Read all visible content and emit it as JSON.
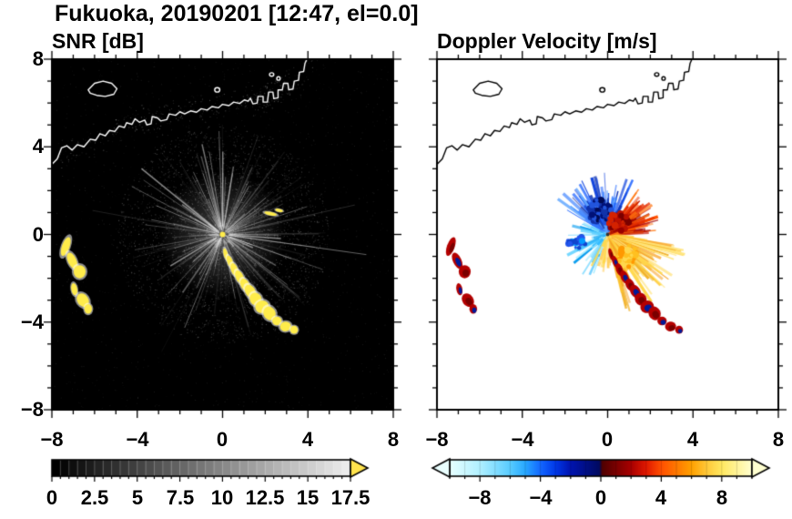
{
  "header": {
    "title": "Fukuoka, 20190201 [12:47, el=0.0]"
  },
  "panels": {
    "snr": {
      "title": "SNR [dB]"
    },
    "doppler": {
      "title": "Doppler Velocity [m/s]"
    }
  },
  "axes": {
    "xticks": [
      "−8",
      "−4",
      "0",
      "4",
      "8"
    ],
    "yticks": [
      "8",
      "4",
      "0",
      "−4",
      "−8"
    ]
  },
  "colorbars": {
    "snr": {
      "tick_labels": [
        "0",
        "2.5",
        "5",
        "7.5",
        "10",
        "12.5",
        "15",
        "17.5"
      ]
    },
    "doppler": {
      "tick_labels": [
        "−8",
        "−4",
        "0",
        "4",
        "8"
      ]
    }
  },
  "map": {
    "coastline": {
      "mainland": [
        [
          -8,
          3.2
        ],
        [
          -7.75,
          3.45
        ],
        [
          -7.55,
          3.95
        ],
        [
          -7.3,
          4.05
        ],
        [
          -7.05,
          3.85
        ],
        [
          -6.8,
          4.1
        ],
        [
          -6.5,
          4.0
        ],
        [
          -6.2,
          4.35
        ],
        [
          -5.95,
          4.3
        ],
        [
          -5.75,
          4.6
        ],
        [
          -5.5,
          4.5
        ],
        [
          -5.3,
          4.75
        ],
        [
          -5.05,
          4.7
        ],
        [
          -4.85,
          4.95
        ],
        [
          -4.6,
          4.88
        ],
        [
          -4.5,
          5.1
        ],
        [
          -4.25,
          5.02
        ],
        [
          -4.1,
          5.28
        ],
        [
          -3.9,
          5.12
        ],
        [
          -3.65,
          5.22
        ],
        [
          -3.55,
          5.0
        ],
        [
          -3.35,
          5.05
        ],
        [
          -3.3,
          5.38
        ],
        [
          -3.05,
          5.32
        ],
        [
          -2.9,
          5.18
        ],
        [
          -2.62,
          5.24
        ],
        [
          -2.5,
          5.5
        ],
        [
          -2.2,
          5.44
        ],
        [
          -2.0,
          5.6
        ],
        [
          -1.78,
          5.5
        ],
        [
          -1.5,
          5.64
        ],
        [
          -1.22,
          5.58
        ],
        [
          -1.0,
          5.74
        ],
        [
          -0.72,
          5.68
        ],
        [
          -0.5,
          5.84
        ],
        [
          -0.2,
          5.78
        ],
        [
          0.0,
          5.94
        ],
        [
          0.3,
          5.88
        ],
        [
          0.52,
          6.04
        ],
        [
          0.8,
          5.98
        ],
        [
          1.02,
          6.14
        ],
        [
          1.2,
          6.08
        ],
        [
          1.3,
          6.22
        ],
        [
          1.42,
          5.96
        ],
        [
          1.62,
          6.0
        ],
        [
          1.66,
          6.3
        ],
        [
          1.9,
          6.3
        ],
        [
          1.9,
          6.04
        ],
        [
          2.1,
          6.04
        ],
        [
          2.16,
          6.5
        ],
        [
          2.36,
          6.5
        ],
        [
          2.4,
          6.2
        ],
        [
          2.6,
          6.24
        ],
        [
          2.6,
          6.6
        ],
        [
          2.8,
          6.6
        ],
        [
          2.86,
          6.9
        ],
        [
          3.06,
          6.9
        ],
        [
          3.1,
          6.6
        ],
        [
          3.3,
          6.64
        ],
        [
          3.36,
          7.0
        ],
        [
          3.56,
          7.04
        ],
        [
          3.6,
          7.4
        ],
        [
          3.8,
          7.44
        ],
        [
          3.86,
          7.8
        ],
        [
          3.95,
          8.0
        ]
      ],
      "island": [
        [
          -6.3,
          6.6
        ],
        [
          -6.0,
          6.9
        ],
        [
          -5.6,
          7.0
        ],
        [
          -5.2,
          6.9
        ],
        [
          -4.95,
          6.65
        ],
        [
          -5.1,
          6.4
        ],
        [
          -5.5,
          6.3
        ],
        [
          -5.9,
          6.35
        ],
        [
          -6.2,
          6.45
        ]
      ],
      "islets": [
        [
          -0.25,
          6.6,
          0.12,
          0.1
        ],
        [
          2.3,
          7.3,
          0.1,
          0.08
        ],
        [
          2.62,
          7.12,
          0.08,
          0.08
        ]
      ]
    },
    "echo_blobs": {
      "west_cluster": [
        [
          -7.35,
          -0.55,
          0.18,
          0.45,
          -20
        ],
        [
          -7.05,
          -1.2,
          0.2,
          0.4,
          25
        ],
        [
          -6.7,
          -1.7,
          0.28,
          0.3,
          0
        ],
        [
          -6.95,
          -2.5,
          0.14,
          0.28,
          10
        ],
        [
          -6.55,
          -3.0,
          0.26,
          0.33,
          35
        ],
        [
          -6.3,
          -3.4,
          0.18,
          0.22,
          0
        ]
      ],
      "southeast_chain": [
        [
          0.15,
          -0.9,
          0.1,
          0.28,
          15
        ],
        [
          0.35,
          -1.25,
          0.13,
          0.3,
          20
        ],
        [
          0.55,
          -1.6,
          0.16,
          0.3,
          20
        ],
        [
          0.8,
          -1.95,
          0.18,
          0.33,
          25
        ],
        [
          1.05,
          -2.3,
          0.2,
          0.3,
          25
        ],
        [
          1.3,
          -2.6,
          0.23,
          0.33,
          30
        ],
        [
          1.55,
          -2.95,
          0.27,
          0.3,
          30
        ],
        [
          1.85,
          -3.3,
          0.32,
          0.28,
          20
        ],
        [
          2.2,
          -3.6,
          0.28,
          0.32,
          25
        ],
        [
          2.55,
          -3.95,
          0.22,
          0.2,
          0
        ],
        [
          2.95,
          -4.2,
          0.26,
          0.22,
          10
        ],
        [
          3.35,
          -4.35,
          0.18,
          0.18,
          0
        ]
      ],
      "east_dashes": [
        [
          2.25,
          0.95,
          0.3,
          0.08,
          -12
        ],
        [
          2.65,
          1.1,
          0.18,
          0.07,
          -12
        ]
      ]
    }
  },
  "chart_data": [
    {
      "type": "heatmap",
      "title": "SNR [dB]",
      "xlabel": "",
      "ylabel": "",
      "xlim": [
        -8,
        8
      ],
      "ylim": [
        -8,
        8
      ],
      "xticks": [
        -8,
        -4,
        0,
        4,
        8
      ],
      "yticks": [
        -8,
        -4,
        0,
        4,
        8
      ],
      "origin": [
        0,
        0
      ],
      "background": "#000000",
      "colorbar": {
        "range": [
          0,
          17.5
        ],
        "ticks": [
          0,
          2.5,
          5,
          7.5,
          10,
          12.5,
          15,
          17.5
        ],
        "colormap": "grayscale black to white",
        "over_color": "#ffe34d"
      },
      "features": [
        "Radial gray clutter streaks centered at radar origin (0,0), lengths about 1-6 km, denser toward NE and E",
        "Saturated yellow echoes (>17.5 dB): western cluster at x=-7.4..-6.3, y=-0.5..-3.5",
        "Saturated yellow echo chain from (0.15,-0.9) down-right to (3.35,-4.35)",
        "Two short yellow dashes near (2.3,1.0)",
        "Coastline and harbor outline drawn in white over black sea/land"
      ]
    },
    {
      "type": "heatmap",
      "title": "Doppler Velocity [m/s]",
      "xlabel": "",
      "ylabel": "",
      "xlim": [
        -8,
        8
      ],
      "ylim": [
        -8,
        8
      ],
      "xticks": [
        -8,
        -4,
        0,
        4,
        8
      ],
      "yticks": [
        -8,
        -4,
        0,
        4,
        8
      ],
      "origin": [
        0,
        0
      ],
      "background": "#ffffff",
      "colorbar": {
        "range": [
          -10,
          10
        ],
        "ticks": [
          -8,
          -4,
          0,
          4,
          8
        ],
        "colormap": "cyan-blue-darkblue / darkred-red-orange-yellow diverging",
        "stops": [
          [
            -10,
            "#e8ffff"
          ],
          [
            -8,
            "#b0f0ff"
          ],
          [
            -6,
            "#58ccff"
          ],
          [
            -5,
            "#28a8ff"
          ],
          [
            -4,
            "#1468ff"
          ],
          [
            -3,
            "#0038e8"
          ],
          [
            -2,
            "#0014b0"
          ],
          [
            -0.1,
            "#000a60"
          ],
          [
            0.1,
            "#500000"
          ],
          [
            2,
            "#a80000"
          ],
          [
            3,
            "#e01800"
          ],
          [
            4,
            "#ff5000"
          ],
          [
            5,
            "#ff7800"
          ],
          [
            6,
            "#ffa000"
          ],
          [
            7,
            "#ffc838"
          ],
          [
            8,
            "#ffe860"
          ],
          [
            10,
            "#ffffd0"
          ]
        ]
      },
      "features": [
        "Velocity fan around origin: negative velocities (blue/dark blue/cyan) toward N-NW-W, positive (dark red/red/orange/yellow) toward E-SE",
        "Dark red with dark blue mottled strong echoes at same locations as the SNR yellow echoes (west cluster and southeast chain)",
        "Coastline and harbor outline drawn in black on white"
      ]
    }
  ]
}
